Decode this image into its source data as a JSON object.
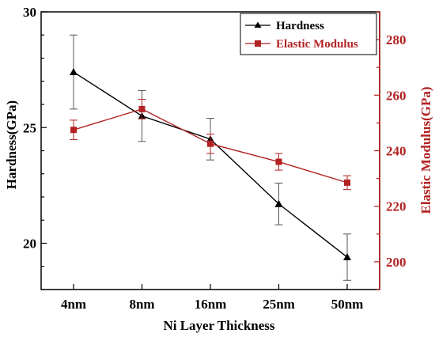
{
  "chart_data": {
    "type": "line",
    "categories": [
      "4nm",
      "8nm",
      "16nm",
      "25nm",
      "50nm"
    ],
    "xlabel": "Ni Layer Thickness",
    "ylabel_left": "Hardness(GPa)",
    "ylabel_right": "Elastic Modulus(GPa)",
    "ylim_left": [
      18,
      30
    ],
    "ylim_right": [
      190,
      290
    ],
    "yticks_left": [
      20,
      25,
      30
    ],
    "yticks_right": [
      200,
      220,
      240,
      260,
      280
    ],
    "legend_position": "top-right",
    "series": [
      {
        "name": "Hardness",
        "axis": "left",
        "color": "#000000",
        "marker": "triangle",
        "values": [
          27.4,
          25.5,
          24.5,
          21.7,
          19.4
        ],
        "errors": [
          1.6,
          1.1,
          0.9,
          0.9,
          1.0
        ]
      },
      {
        "name": "Elastic Modulus",
        "axis": "right",
        "color": "#b22222",
        "marker": "square",
        "values": [
          247.5,
          255,
          242.5,
          236,
          228.5
        ],
        "errors": [
          3.5,
          3.5,
          3.5,
          3.0,
          2.5
        ]
      }
    ]
  }
}
